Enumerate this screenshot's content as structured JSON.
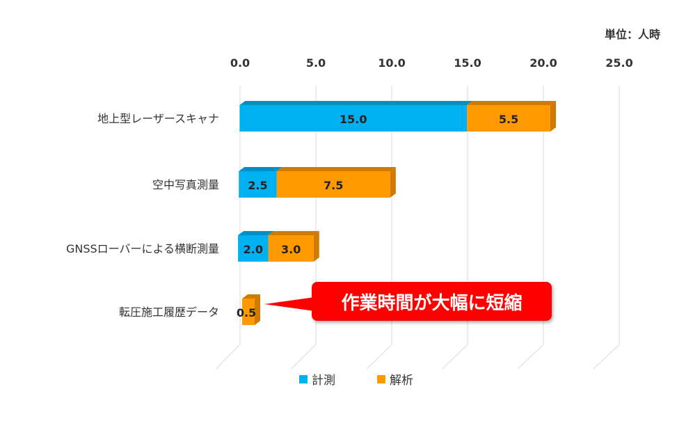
{
  "unit_label": "単位：人時",
  "callout_text": "作業時間が大幅に短縮",
  "colors": {
    "measure": "#00b0f0",
    "analysis": "#ff9900",
    "callout": "#ff0000"
  },
  "chart_data": {
    "type": "bar",
    "orientation": "horizontal",
    "stacked": true,
    "categories": [
      "地上型レーザースキャナ",
      "空中写真測量",
      "GNSSローバーによる横断測量",
      "転圧施工履歴データ"
    ],
    "series": [
      {
        "name": "計測",
        "color": "#00b0f0",
        "values": [
          15.0,
          2.5,
          2.0,
          null
        ]
      },
      {
        "name": "解析",
        "color": "#ff9900",
        "values": [
          5.5,
          7.5,
          3.0,
          0.5
        ]
      }
    ],
    "value_labels": [
      [
        "15.0",
        "2.5",
        "2.0",
        ""
      ],
      [
        "5.5",
        "7.5",
        "3.0",
        "0.5"
      ]
    ],
    "x_ticks": [
      "0.0",
      "5.0",
      "10.0",
      "15.0",
      "20.0",
      "25.0"
    ],
    "xlim": [
      0,
      25
    ],
    "axis_position": "top",
    "legend_position": "bottom",
    "grid": true
  }
}
